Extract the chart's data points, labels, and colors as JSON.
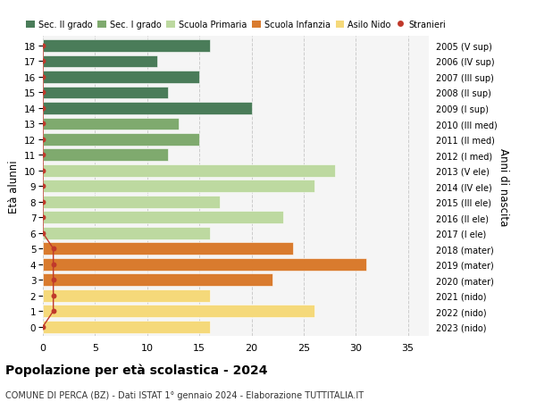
{
  "ages": [
    18,
    17,
    16,
    15,
    14,
    13,
    12,
    11,
    10,
    9,
    8,
    7,
    6,
    5,
    4,
    3,
    2,
    1,
    0
  ],
  "right_labels": [
    "2005 (V sup)",
    "2006 (IV sup)",
    "2007 (III sup)",
    "2008 (II sup)",
    "2009 (I sup)",
    "2010 (III med)",
    "2011 (II med)",
    "2012 (I med)",
    "2013 (V ele)",
    "2014 (IV ele)",
    "2015 (III ele)",
    "2016 (II ele)",
    "2017 (I ele)",
    "2018 (mater)",
    "2019 (mater)",
    "2020 (mater)",
    "2021 (nido)",
    "2022 (nido)",
    "2023 (nido)"
  ],
  "values": [
    16,
    11,
    15,
    12,
    20,
    13,
    15,
    12,
    28,
    26,
    17,
    23,
    16,
    24,
    31,
    22,
    16,
    26,
    16
  ],
  "bar_colors": [
    "#4a7c59",
    "#4a7c59",
    "#4a7c59",
    "#4a7c59",
    "#4a7c59",
    "#7faa6e",
    "#7faa6e",
    "#7faa6e",
    "#bdd9a0",
    "#bdd9a0",
    "#bdd9a0",
    "#bdd9a0",
    "#bdd9a0",
    "#d97b2e",
    "#d97b2e",
    "#d97b2e",
    "#f5d97a",
    "#f5d97a",
    "#f5d97a"
  ],
  "stranieri_x": [
    0,
    0,
    0,
    0,
    0,
    0,
    0,
    0,
    0,
    0,
    0,
    0,
    0,
    1,
    1,
    1,
    1,
    1,
    0
  ],
  "legend_labels": [
    "Sec. II grado",
    "Sec. I grado",
    "Scuola Primaria",
    "Scuola Infanzia",
    "Asilo Nido",
    "Stranieri"
  ],
  "legend_colors": [
    "#4a7c59",
    "#7faa6e",
    "#bdd9a0",
    "#d97b2e",
    "#f5d97a",
    "#c0392b"
  ],
  "ylabel": "Età alunni",
  "right_axis_label": "Anni di nascita",
  "title": "Popolazione per età scolastica - 2024",
  "subtitle": "COMUNE DI PERCA (BZ) - Dati ISTAT 1° gennaio 2024 - Elaborazione TUTTITALIA.IT",
  "xlim": [
    0,
    37
  ],
  "xticks": [
    0,
    5,
    10,
    15,
    20,
    25,
    30,
    35
  ],
  "grid_color": "#cccccc",
  "bg_color": "#f5f5f5"
}
